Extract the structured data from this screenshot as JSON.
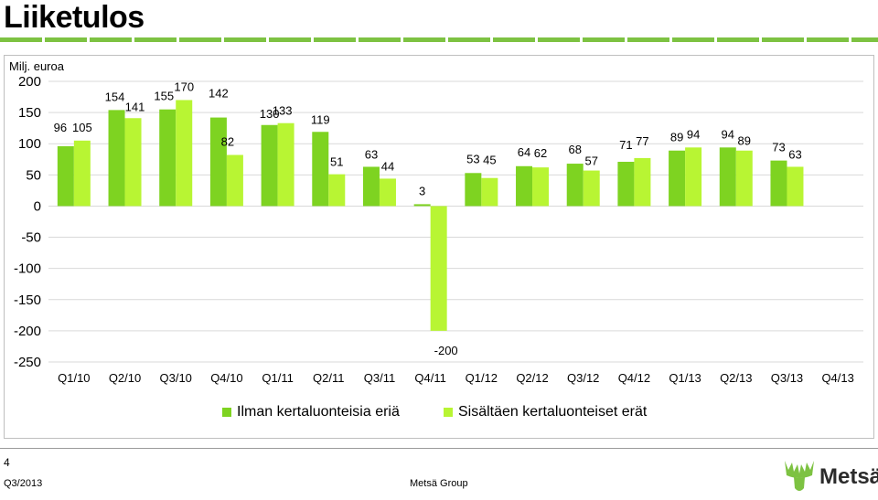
{
  "page": {
    "title": "Liiketulos",
    "page_number": "4",
    "footer_left": "Q3/2013",
    "footer_center": "Metsä Group",
    "logo_text": "Metsä"
  },
  "colors": {
    "dark_green": "#7ed321",
    "light_green": "#b8f533",
    "brand_green": "#7dc242"
  },
  "chart_data": {
    "type": "bar",
    "ylabel": "Milj. euroa",
    "ylim": [
      -250,
      200
    ],
    "yticks": [
      200,
      150,
      100,
      50,
      0,
      -50,
      -100,
      -150,
      -200,
      -250
    ],
    "grid": true,
    "legend_position": "bottom",
    "categories": [
      "Q1/10",
      "Q2/10",
      "Q3/10",
      "Q4/10",
      "Q1/11",
      "Q2/11",
      "Q3/11",
      "Q4/11",
      "Q1/12",
      "Q2/12",
      "Q3/12",
      "Q4/12",
      "Q1/13",
      "Q2/13",
      "Q3/13",
      "Q4/13"
    ],
    "series": [
      {
        "name": "Ilman kertaluonteisia eriä",
        "color": "#7ed321",
        "values": [
          96,
          154,
          155,
          142,
          130,
          119,
          63,
          3,
          53,
          64,
          68,
          71,
          89,
          94,
          73,
          null
        ]
      },
      {
        "name": "Sisältäen kertaluonteiset erät",
        "color": "#b8f533",
        "values": [
          105,
          141,
          170,
          82,
          133,
          51,
          44,
          -200,
          45,
          62,
          57,
          77,
          94,
          89,
          63,
          null
        ]
      }
    ]
  }
}
